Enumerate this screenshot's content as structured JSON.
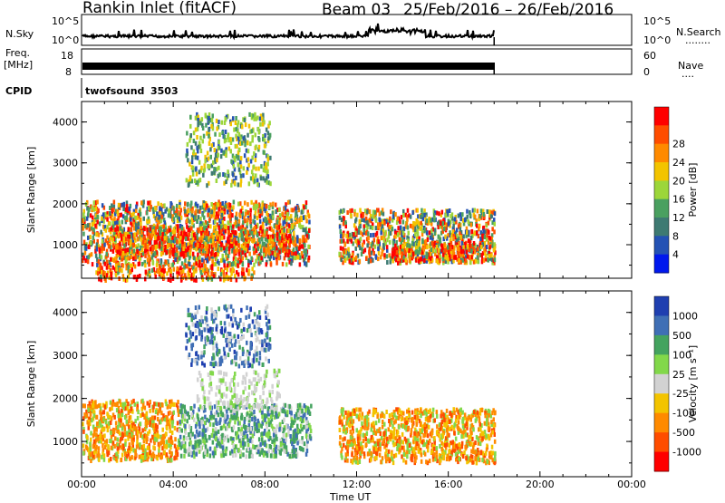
{
  "header": {
    "site": "Rankin Inlet (fitACF)",
    "beam": "Beam 03",
    "date_range": "25/Feb/2016 – 26/Feb/2016"
  },
  "noise_panel": {
    "left_label": "N.Sky",
    "right_label": "N.Search",
    "right_marker": "........",
    "left_ticks": [
      "10^5",
      "10^0"
    ],
    "right_ticks": [
      "10^5",
      "10^0"
    ]
  },
  "freq_panel": {
    "left_label_1": "Freq.",
    "left_label_2": "[MHz]",
    "right_label": "Nave",
    "right_marker": "....",
    "left_ticks": [
      "18",
      "8"
    ],
    "right_ticks": [
      "60",
      "0"
    ]
  },
  "cpid": {
    "label": "CPID",
    "name": "twofsound",
    "id": "3503"
  },
  "x_axis": {
    "label": "Time UT",
    "ticks": [
      "00:00",
      "04:00",
      "08:00",
      "12:00",
      "16:00",
      "20:00",
      "00:00"
    ],
    "range_hours": [
      0,
      24
    ],
    "data_end_hours": 18
  },
  "chart_data": [
    {
      "type": "heatmap",
      "panel": "power",
      "ylabel": "Slant Range [km]",
      "ylim": [
        180,
        4500
      ],
      "yticks": [
        "1000",
        "2000",
        "3000",
        "4000"
      ],
      "colorbar_label": "Power [dB]",
      "colorbar_ticks": [
        "4",
        "8",
        "12",
        "16",
        "20",
        "24",
        "28"
      ],
      "colorbar_colors": [
        "#0018ee",
        "#2452b4",
        "#3e7a72",
        "#4aa060",
        "#9cd63a",
        "#f3c400",
        "#ff8a00",
        "#ff4d00",
        "#ff0000"
      ],
      "regions": [
        {
          "t": [
            0,
            9.9
          ],
          "r": [
            550,
            2100
          ],
          "level": "mixed"
        },
        {
          "t": [
            1.3,
            9.3
          ],
          "r": [
            800,
            1500
          ],
          "level": "strong"
        },
        {
          "t": [
            4.5,
            8.2
          ],
          "r": [
            2500,
            4250
          ],
          "level": "weak"
        },
        {
          "t": [
            11.2,
            18
          ],
          "r": [
            600,
            1900
          ],
          "level": "mixed"
        },
        {
          "t": [
            13.5,
            18
          ],
          "r": [
            650,
            1100
          ],
          "level": "strong"
        },
        {
          "t": [
            0.6,
            7.5
          ],
          "r": [
            180,
            550
          ],
          "level": "strong"
        }
      ]
    },
    {
      "type": "heatmap",
      "panel": "velocity",
      "ylabel": "Slant Range [km]",
      "ylim": [
        180,
        4500
      ],
      "yticks": [
        "1000",
        "2000",
        "3000",
        "4000"
      ],
      "colorbar_label": "Velocity [m s⁻¹]",
      "colorbar_ticks": [
        "1000",
        "500",
        "100",
        "25",
        "-25",
        "-100",
        "-500",
        "-1000"
      ],
      "colorbar_colors": [
        "#1f3fb0",
        "#3f6fb5",
        "#44a35f",
        "#82d84a",
        "#d2d2d2",
        "#f3c400",
        "#ff8a00",
        "#ff4d00",
        "#ff0000"
      ],
      "regions": [
        {
          "t": [
            0,
            4.2
          ],
          "r": [
            600,
            2000
          ],
          "level": "orange"
        },
        {
          "t": [
            4.2,
            10
          ],
          "r": [
            700,
            1900
          ],
          "level": "green"
        },
        {
          "t": [
            5,
            8.6
          ],
          "r": [
            1800,
            2700
          ],
          "level": "gray"
        },
        {
          "t": [
            4.5,
            8.2
          ],
          "r": [
            2800,
            4200
          ],
          "level": "blue"
        },
        {
          "t": [
            11.2,
            18
          ],
          "r": [
            550,
            1800
          ],
          "level": "orange"
        }
      ]
    }
  ]
}
